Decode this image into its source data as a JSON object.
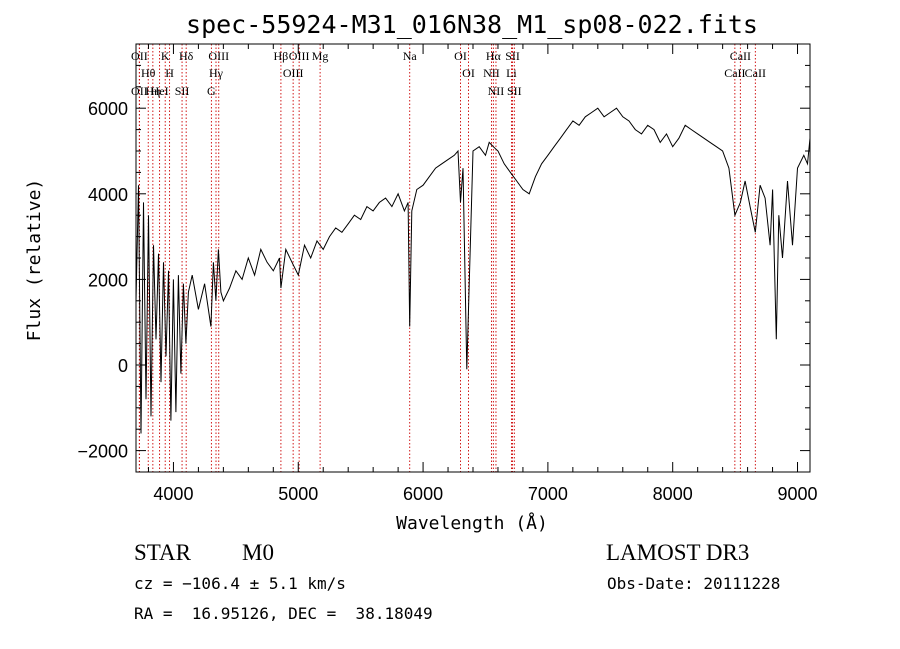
{
  "chart_data": {
    "type": "line",
    "title": "spec-55924-M31_016N38_M1_sp08-022.fits",
    "xlabel": "Wavelength (Å)",
    "ylabel": "Flux (relative)",
    "xlim": [
      3700,
      9100
    ],
    "ylim": [
      -2500,
      7500
    ],
    "x_ticks": [
      4000,
      5000,
      6000,
      7000,
      8000,
      9000
    ],
    "x_tick_labels": [
      "4000",
      "5000",
      "6000",
      "7000",
      "8000",
      "9000"
    ],
    "y_ticks": [
      -2000,
      0,
      2000,
      4000,
      6000
    ],
    "y_tick_labels": [
      "−2000",
      "0",
      "2000",
      "4000",
      "6000"
    ],
    "series": [
      {
        "name": "flux",
        "x": [
          3700,
          3720,
          3740,
          3760,
          3780,
          3800,
          3820,
          3840,
          3860,
          3880,
          3900,
          3920,
          3940,
          3960,
          3980,
          4000,
          4020,
          4040,
          4060,
          4080,
          4100,
          4120,
          4150,
          4200,
          4250,
          4300,
          4320,
          4340,
          4360,
          4380,
          4400,
          4450,
          4500,
          4550,
          4600,
          4650,
          4700,
          4750,
          4800,
          4850,
          4861,
          4900,
          4950,
          5000,
          5050,
          5100,
          5150,
          5200,
          5250,
          5300,
          5350,
          5400,
          5450,
          5500,
          5550,
          5600,
          5650,
          5700,
          5750,
          5800,
          5850,
          5880,
          5893,
          5910,
          5950,
          6000,
          6050,
          6100,
          6150,
          6200,
          6250,
          6280,
          6300,
          6320,
          6350,
          6400,
          6450,
          6500,
          6530,
          6563,
          6600,
          6650,
          6700,
          6750,
          6800,
          6850,
          6900,
          6950,
          7000,
          7050,
          7100,
          7150,
          7200,
          7250,
          7300,
          7350,
          7400,
          7450,
          7500,
          7550,
          7600,
          7650,
          7700,
          7750,
          7800,
          7850,
          7900,
          7950,
          8000,
          8050,
          8100,
          8150,
          8200,
          8250,
          8300,
          8350,
          8400,
          8450,
          8498,
          8542,
          8580,
          8620,
          8662,
          8700,
          8740,
          8780,
          8800,
          8830,
          8850,
          8880,
          8920,
          8960,
          9000,
          9050,
          9080,
          9100
        ],
        "y": [
          1500,
          4200,
          -1600,
          3800,
          -800,
          3500,
          -1200,
          2800,
          600,
          2600,
          -400,
          2400,
          200,
          2200,
          -1300,
          2000,
          -1100,
          2100,
          -200,
          1900,
          500,
          1700,
          2100,
          1300,
          1900,
          900,
          2400,
          1500,
          2700,
          1700,
          1500,
          1800,
          2200,
          2000,
          2500,
          2100,
          2700,
          2400,
          2200,
          2500,
          1800,
          2700,
          2400,
          2100,
          2800,
          2500,
          2900,
          2700,
          3000,
          3200,
          3100,
          3300,
          3500,
          3400,
          3700,
          3600,
          3800,
          3900,
          3700,
          4000,
          3600,
          3800,
          900,
          3600,
          4100,
          4200,
          4400,
          4600,
          4700,
          4800,
          4900,
          5000,
          3800,
          4600,
          -100,
          5000,
          5100,
          4900,
          5200,
          5100,
          5000,
          4700,
          4500,
          4300,
          4100,
          4000,
          4400,
          4700,
          4900,
          5100,
          5300,
          5500,
          5700,
          5600,
          5800,
          5900,
          6000,
          5800,
          5900,
          6000,
          5800,
          5700,
          5500,
          5400,
          5600,
          5500,
          5200,
          5400,
          5100,
          5300,
          5600,
          5500,
          5400,
          5300,
          5200,
          5100,
          5000,
          4600,
          3500,
          3800,
          4300,
          3700,
          3100,
          4200,
          3900,
          2800,
          4100,
          600,
          3500,
          2500,
          4300,
          2800,
          4600,
          4900,
          4700,
          5300
        ]
      }
    ],
    "spectral_lines": [
      {
        "label": "OII",
        "wavelength": 3727
      },
      {
        "label": "Hθ",
        "wavelength": 3798
      },
      {
        "label": "OII",
        "wavelength": 3727
      },
      {
        "label": "Hη",
        "wavelength": 3835
      },
      {
        "label": "K",
        "wavelength": 3934
      },
      {
        "label": "HeI",
        "wavelength": 3889
      },
      {
        "label": "H",
        "wavelength": 3969
      },
      {
        "label": "Hδ",
        "wavelength": 4102
      },
      {
        "label": "SII",
        "wavelength": 4069
      },
      {
        "label": "OIII",
        "wavelength": 4363
      },
      {
        "label": "Hγ",
        "wavelength": 4341
      },
      {
        "label": "G",
        "wavelength": 4304
      },
      {
        "label": "Hβ",
        "wavelength": 4861
      },
      {
        "label": "OIII",
        "wavelength": 5007
      },
      {
        "label": "OIII",
        "wavelength": 4959
      },
      {
        "label": "Mg",
        "wavelength": 5175
      },
      {
        "label": "Na",
        "wavelength": 5893
      },
      {
        "label": "OI",
        "wavelength": 6300
      },
      {
        "label": "OI",
        "wavelength": 6364
      },
      {
        "label": "Hα",
        "wavelength": 6563
      },
      {
        "label": "NII",
        "wavelength": 6548
      },
      {
        "label": "NII",
        "wavelength": 6584
      },
      {
        "label": "SII",
        "wavelength": 6717
      },
      {
        "label": "Li",
        "wavelength": 6708
      },
      {
        "label": "SII",
        "wavelength": 6731
      },
      {
        "label": "CaII",
        "wavelength": 8542
      },
      {
        "label": "CaII",
        "wavelength": 8498
      },
      {
        "label": "CaII",
        "wavelength": 8662
      }
    ]
  },
  "info": {
    "object_class": "STAR",
    "subclass": "M0",
    "survey": "LAMOST DR3",
    "cz": "cz = −106.4 ± 5.1 km/s",
    "obs_date": "Obs-Date: 20111228",
    "coords": "RA =  16.95126, DEC =  38.18049"
  },
  "colors": {
    "axis": "#000000",
    "line_marker": "#cc0000",
    "spectrum": "#000000"
  }
}
